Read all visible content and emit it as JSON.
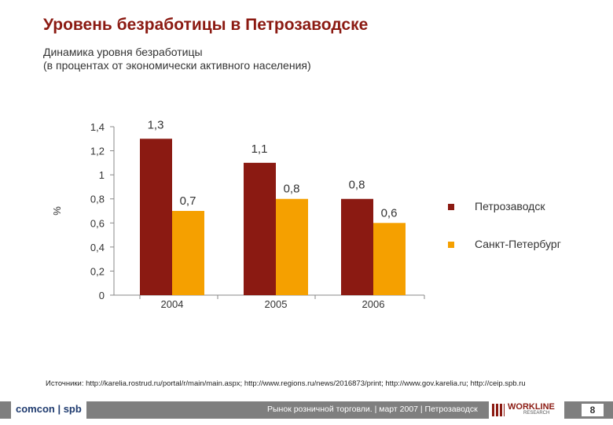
{
  "title": "Уровень безработицы в Петрозаводске",
  "subtitle_line1": "Динамика уровня безработицы",
  "subtitle_line2": "(в процентах от экономически активного населения)",
  "colors": {
    "series1": "#8b1a12",
    "series2": "#f5a000",
    "title": "#8b1a12"
  },
  "chart_data": {
    "type": "bar",
    "categories": [
      "2004",
      "2005",
      "2006"
    ],
    "series": [
      {
        "name": "Петрозаводск",
        "values": [
          1.3,
          1.1,
          0.8
        ],
        "labels": [
          "1,3",
          "1,1",
          "0,8"
        ]
      },
      {
        "name": "Санкт-Петербург",
        "values": [
          0.7,
          0.8,
          0.6
        ],
        "labels": [
          "0,7",
          "0,8",
          "0,6"
        ]
      }
    ],
    "ylabel": "%",
    "ylim": [
      0,
      1.4
    ],
    "yticks": [
      0,
      0.2,
      0.4,
      0.6,
      0.8,
      1,
      1.2,
      1.4
    ],
    "ytick_labels": [
      "0",
      "0,2",
      "0,4",
      "0,6",
      "0,8",
      "1",
      "1,2",
      "1,4"
    ],
    "grid": false,
    "legend_position": "right"
  },
  "sources": "Источники: http://karelia.rostrud.ru/portal/r/main/main.aspx; http://www.regions.ru/news/2016873/print; http://www.gov.karelia.ru; http://ceip.spb.ru",
  "footer": {
    "logo_left": "comcon | spb",
    "text": "Рынок розничной торговли. | март 2007 | Петрозаводск",
    "logo_right": "WORKLINE",
    "logo_right_sub": "RESEARCH",
    "page": "8"
  }
}
